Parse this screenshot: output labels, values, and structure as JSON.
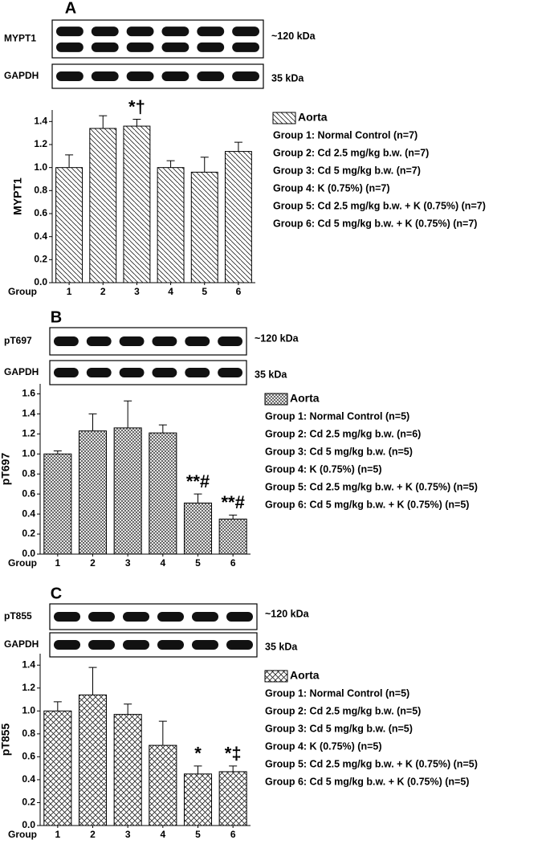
{
  "chart_data": [
    {
      "type": "bar",
      "panel": "A",
      "ylabel": "MYPT1",
      "xlabel": "Group",
      "blots": [
        {
          "label": "MYPT1",
          "size": "~120 kDa"
        },
        {
          "label": "GAPDH",
          "size": "35 kDa"
        }
      ],
      "categories": [
        "1",
        "2",
        "3",
        "4",
        "5",
        "6"
      ],
      "series": [
        {
          "name": "Aorta",
          "pattern": "diagonal",
          "values": [
            1.0,
            1.34,
            1.36,
            1.0,
            0.96,
            1.14
          ],
          "errors": [
            0.11,
            0.11,
            0.06,
            0.06,
            0.13,
            0.08
          ]
        }
      ],
      "annotations": [
        null,
        null,
        "*†",
        null,
        null,
        null
      ],
      "notes": [
        "Group 1: Normal Control (n=7)",
        "Group 2: Cd 2.5 mg/kg b.w. (n=7)",
        "Group 3: Cd 5 mg/kg b.w. (n=7)",
        "Group 4: K (0.75%) (n=7)",
        "Group 5: Cd 2.5 mg/kg b.w. + K (0.75%) (n=7)",
        "Group 6: Cd 5 mg/kg b.w. + K (0.75%) (n=7)"
      ],
      "ylim": [
        0,
        1.5
      ],
      "yticks": [
        {
          "value": 0,
          "label": "0.0"
        },
        0.2,
        0.4,
        0.6,
        0.8,
        {
          "value": 1,
          "label": "1.0"
        },
        1.2,
        1.4
      ]
    },
    {
      "type": "bar",
      "panel": "B",
      "ylabel": "pT697",
      "xlabel": "Group",
      "blots": [
        {
          "label": "pT697",
          "size": "~120 kDa"
        },
        {
          "label": "GAPDH",
          "size": "35 kDa"
        }
      ],
      "categories": [
        "1",
        "2",
        "3",
        "4",
        "5",
        "6"
      ],
      "series": [
        {
          "name": "Aorta",
          "pattern": "crosshatch-fine",
          "values": [
            1.0,
            1.23,
            1.26,
            1.21,
            0.51,
            0.35
          ],
          "errors": [
            0.03,
            0.17,
            0.27,
            0.08,
            0.09,
            0.04
          ]
        }
      ],
      "annotations": [
        null,
        null,
        null,
        null,
        "**#",
        "**#"
      ],
      "notes": [
        "Group 1: Normal Control (n=5)",
        "Group 2: Cd 2.5 mg/kg b.w. (n=6)",
        "Group 3: Cd 5 mg/kg b.w. (n=5)",
        "Group 4: K (0.75%) (n=5)",
        "Group 5: Cd 2.5 mg/kg b.w. + K (0.75%) (n=5)",
        "Group 6: Cd 5 mg/kg b.w. + K (0.75%) (n=5)"
      ],
      "ylim": [
        0,
        1.7
      ],
      "yticks": [
        {
          "value": 0,
          "label": "0.0"
        },
        0.2,
        0.4,
        0.6,
        0.8,
        {
          "value": 1,
          "label": "1.0"
        },
        1.2,
        1.4,
        1.6
      ]
    },
    {
      "type": "bar",
      "panel": "C",
      "ylabel": "pT855",
      "xlabel": "Group",
      "blots": [
        {
          "label": "pT855",
          "size": "~120 kDa"
        },
        {
          "label": "GAPDH",
          "size": "35 kDa"
        }
      ],
      "categories": [
        "1",
        "2",
        "3",
        "4",
        "5",
        "6"
      ],
      "series": [
        {
          "name": "Aorta",
          "pattern": "crosshatch",
          "values": [
            1.0,
            1.14,
            0.97,
            0.7,
            0.45,
            0.47
          ],
          "errors": [
            0.08,
            0.24,
            0.09,
            0.21,
            0.07,
            0.05
          ]
        }
      ],
      "annotations": [
        null,
        null,
        null,
        null,
        "*",
        "*‡"
      ],
      "notes": [
        "Group 1: Normal Control (n=5)",
        "Group 2: Cd 2.5 mg/kg b.w. (n=5)",
        "Group 3: Cd 5 mg/kg b.w. (n=5)",
        "Group 4: K (0.75%) (n=5)",
        "Group 5: Cd 2.5 mg/kg b.w. + K (0.75%) (n=5)",
        "Group 6: Cd 5 mg/kg b.w. + K (0.75%) (n=5)"
      ],
      "ylim": [
        0,
        1.5
      ],
      "yticks": [
        {
          "value": 0,
          "label": "0.0"
        },
        0.2,
        0.4,
        0.6,
        0.8,
        {
          "value": 1,
          "label": "1.0"
        },
        1.2,
        1.4
      ]
    }
  ]
}
